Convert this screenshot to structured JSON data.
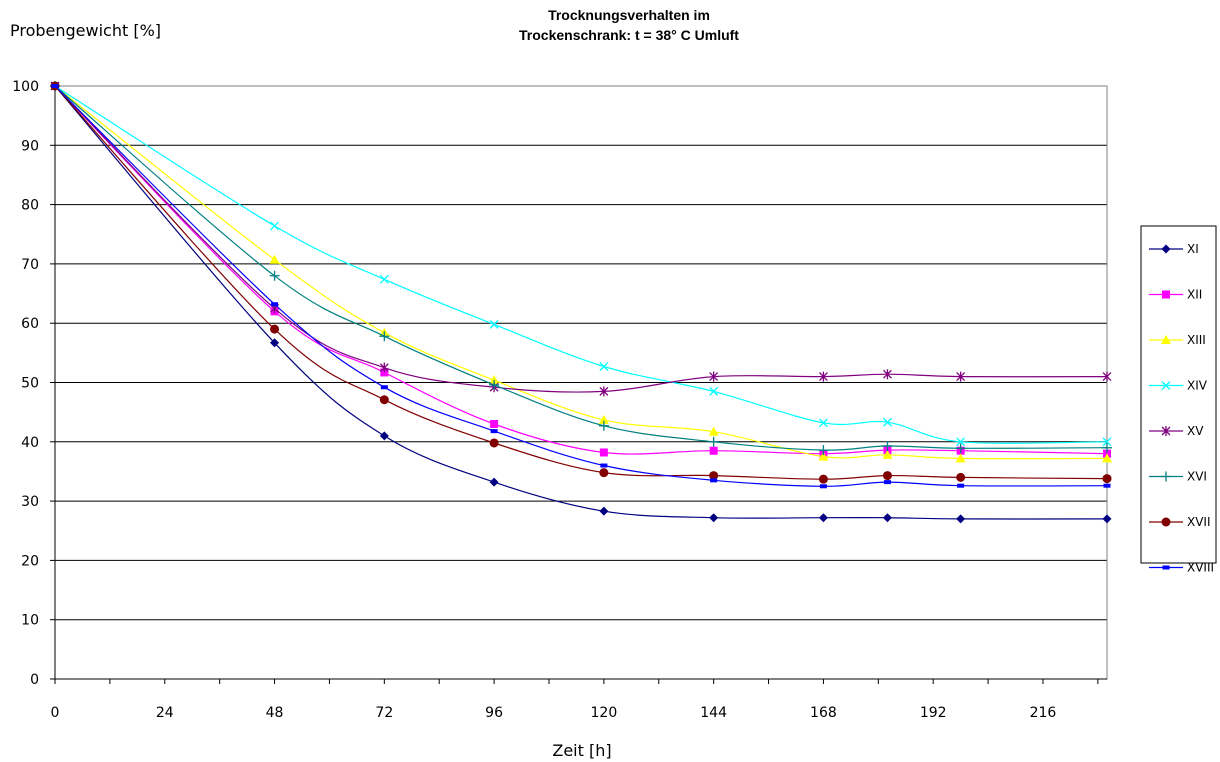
{
  "chart_data": {
    "type": "line",
    "title": [
      "Trocknungsverhalten im",
      "Trockenschrank: t = 38° C Umluft"
    ],
    "xlabel": "Zeit [h]",
    "ylabel": "Probengewicht [%]",
    "xlim": [
      0,
      230
    ],
    "ylim": [
      0,
      100
    ],
    "xticks": [
      0,
      24,
      48,
      72,
      96,
      120,
      144,
      168,
      192,
      216
    ],
    "yticks": [
      0,
      10,
      20,
      30,
      40,
      50,
      60,
      70,
      80,
      90,
      100
    ],
    "grid": "horizontal",
    "legend_position": "right",
    "x": [
      0,
      48,
      72,
      96,
      120,
      144,
      168,
      182,
      198,
      230
    ],
    "series": [
      {
        "name": "XI",
        "color": "#000080",
        "marker": "diamond",
        "values": [
          100,
          56.7,
          41.0,
          33.2,
          28.3,
          27.2,
          27.2,
          27.2,
          27.0,
          27.0
        ]
      },
      {
        "name": "XII",
        "color": "#FF00FF",
        "marker": "square",
        "values": [
          100,
          62.0,
          51.7,
          43.0,
          38.2,
          38.5,
          38.0,
          38.6,
          38.5,
          38.0
        ]
      },
      {
        "name": "XIII",
        "color": "#FFFF00",
        "marker": "triangle",
        "values": [
          100,
          70.7,
          58.4,
          50.4,
          43.7,
          41.7,
          37.5,
          37.8,
          37.2,
          37.2
        ]
      },
      {
        "name": "XIV",
        "color": "#00FFFF",
        "marker": "x",
        "values": [
          100,
          76.4,
          67.4,
          59.8,
          52.7,
          48.5,
          43.2,
          43.3,
          40.0,
          40.0
        ]
      },
      {
        "name": "XV",
        "color": "#800080",
        "marker": "star",
        "values": [
          100,
          62.5,
          52.5,
          49.2,
          48.5,
          51.0,
          51.0,
          51.4,
          51.0,
          51.0
        ]
      },
      {
        "name": "XVI",
        "color": "#008080",
        "marker": "plus",
        "values": [
          100,
          68.0,
          57.8,
          49.6,
          42.7,
          40.0,
          38.6,
          39.3,
          38.9,
          39.0
        ]
      },
      {
        "name": "XVII",
        "color": "#800000",
        "marker": "circle",
        "values": [
          100,
          59.0,
          47.1,
          39.8,
          34.8,
          34.3,
          33.7,
          34.3,
          34.0,
          33.8
        ]
      },
      {
        "name": "XVIII",
        "color": "#0000FF",
        "marker": "dash",
        "values": [
          100,
          63.2,
          49.2,
          41.8,
          36.0,
          33.5,
          32.5,
          33.2,
          32.6,
          32.6
        ]
      }
    ]
  }
}
